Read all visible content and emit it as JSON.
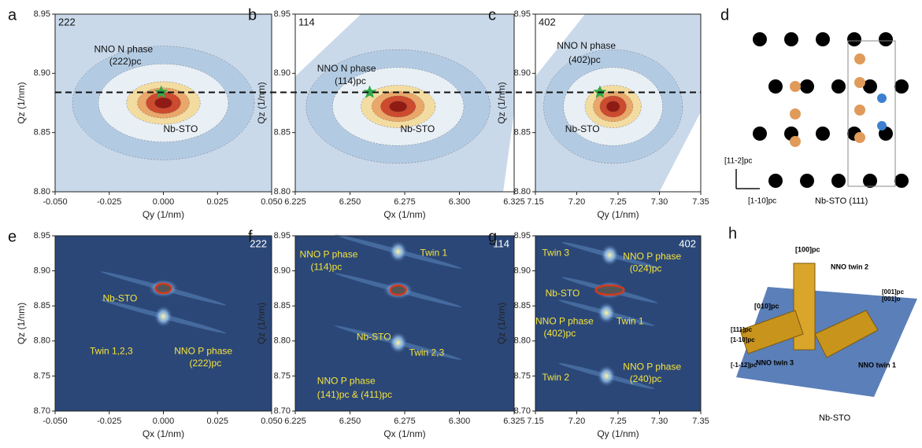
{
  "chart_data": [
    {
      "type": "contour",
      "panel": "a",
      "tag": "222",
      "xlabel": "Qy (1/nm)",
      "ylabel": "Qz (1/nm)",
      "xlim": [
        -0.05,
        0.05
      ],
      "ylim": [
        8.8,
        8.95
      ],
      "xticks": [
        {
          "value": -0.05,
          "label": "-0.050"
        },
        -0.025,
        {
          "value": 0,
          "label": "0.000"
        },
        0.025,
        {
          "value": 0.05,
          "label": "0.050"
        }
      ],
      "yticks": [
        {
          "value": 8.8,
          "label": "8.80"
        },
        8.85,
        {
          "value": 8.9,
          "label": "8.90"
        },
        8.95
      ],
      "annotations": [
        "NNO N phase",
        "(222)pc",
        "Nb-STO"
      ]
    },
    {
      "type": "contour",
      "panel": "b",
      "tag": "114",
      "xlabel": "Qx (1/nm)",
      "ylabel": "Qz (1/nm)",
      "xlim": [
        6.225,
        6.325
      ],
      "ylim": [
        8.8,
        8.95
      ],
      "xticks": [
        6.225,
        {
          "value": 6.25,
          "label": "6.250"
        },
        6.275,
        {
          "value": 6.3,
          "label": "6.300"
        },
        6.325
      ],
      "yticks": [
        {
          "value": 8.8,
          "label": "8.80"
        },
        8.85,
        {
          "value": 8.9,
          "label": "8.90"
        },
        8.95
      ],
      "annotations": [
        "NNO N phase",
        "(114)pc",
        "Nb-STO"
      ]
    },
    {
      "type": "contour",
      "panel": "c",
      "tag": "402",
      "xlabel": "Qy (1/nm)",
      "ylabel": "Qz (1/nm)",
      "xlim": [
        7.15,
        7.35
      ],
      "ylim": [
        8.8,
        8.95
      ],
      "xticks": [
        7.15,
        {
          "value": 7.2,
          "label": "7.20"
        },
        7.25,
        {
          "value": 7.3,
          "label": "7.30"
        },
        7.35
      ],
      "yticks": [
        {
          "value": 8.8,
          "label": "8.80"
        },
        8.85,
        {
          "value": 8.9,
          "label": "8.90"
        },
        8.95
      ],
      "annotations": [
        "NNO N phase",
        "(402)pc",
        "Nb-STO"
      ]
    },
    {
      "type": "contour",
      "panel": "e",
      "tag": "222",
      "xlabel": "Qx (1/nm)",
      "ylabel": "Qz (1/nm)",
      "xlim": [
        -0.05,
        0.05
      ],
      "ylim": [
        8.7,
        8.95
      ],
      "xticks": [
        {
          "value": -0.05,
          "label": "-0.050"
        },
        -0.025,
        {
          "value": 0,
          "label": "0.000"
        },
        0.025,
        {
          "value": 0.05,
          "label": "0.050"
        }
      ],
      "yticks": [
        {
          "value": 8.7,
          "label": "8.70"
        },
        8.75,
        {
          "value": 8.8,
          "label": "8.80"
        },
        8.85,
        {
          "value": 8.9,
          "label": "8.90"
        },
        8.95
      ],
      "annotations": [
        "Nb-STO",
        "Twin 1,2,3",
        "NNO P phase",
        "(222)pc"
      ]
    },
    {
      "type": "contour",
      "panel": "f",
      "tag": "114",
      "xlabel": "Qx (1/nm)",
      "ylabel": "Qz (1/nm)",
      "xlim": [
        6.225,
        6.325
      ],
      "ylim": [
        8.7,
        8.95
      ],
      "xticks": [
        6.225,
        {
          "value": 6.25,
          "label": "6.250"
        },
        6.275,
        {
          "value": 6.3,
          "label": "6.300"
        },
        6.325
      ],
      "yticks": [
        {
          "value": 8.7,
          "label": "8.70"
        },
        8.75,
        {
          "value": 8.8,
          "label": "8.80"
        },
        8.85,
        {
          "value": 8.9,
          "label": "8.90"
        },
        8.95
      ],
      "annotations": [
        "NNO P phase",
        "(114)pc",
        "Twin 1",
        "Nb-STO",
        "Twin 2,3",
        "NNO P phase",
        "(141)pc & (411)pc"
      ]
    },
    {
      "type": "contour",
      "panel": "g",
      "tag": "402",
      "xlabel": "Qy (1/nm)",
      "ylabel": "Qz (1/nm)",
      "xlim": [
        7.15,
        7.35
      ],
      "ylim": [
        8.7,
        8.95
      ],
      "xticks": [
        7.15,
        {
          "value": 7.2,
          "label": "7.20"
        },
        7.25,
        {
          "value": 7.3,
          "label": "7.30"
        },
        7.35
      ],
      "yticks": [
        {
          "value": 8.7,
          "label": "8.70"
        },
        8.75,
        {
          "value": 8.8,
          "label": "8.80"
        },
        8.85,
        {
          "value": 8.9,
          "label": "8.90"
        },
        8.95
      ],
      "annotations": [
        "Twin 3",
        "NNO P phase",
        "(024)pc",
        "Nb-STO",
        "NNO P phase",
        "(402)pc",
        "Twin 1",
        "Twin 2",
        "NNO P phase",
        "(240)pc"
      ]
    }
  ],
  "diagrams": {
    "d": {
      "panel": "d",
      "labels": [
        "[11-2]pc",
        "[1-10]pc",
        "Nb-STO (111)"
      ]
    },
    "h": {
      "panel": "h",
      "labels": [
        "[100]pc",
        "NNO twin 2",
        "[010]pc",
        "[001]pc",
        "[001]o",
        "[111]pc",
        "[1-10]pc",
        "NNO twin 3",
        "NNO twin 1",
        "[-1-12]pc",
        "Nb-STO"
      ]
    }
  }
}
